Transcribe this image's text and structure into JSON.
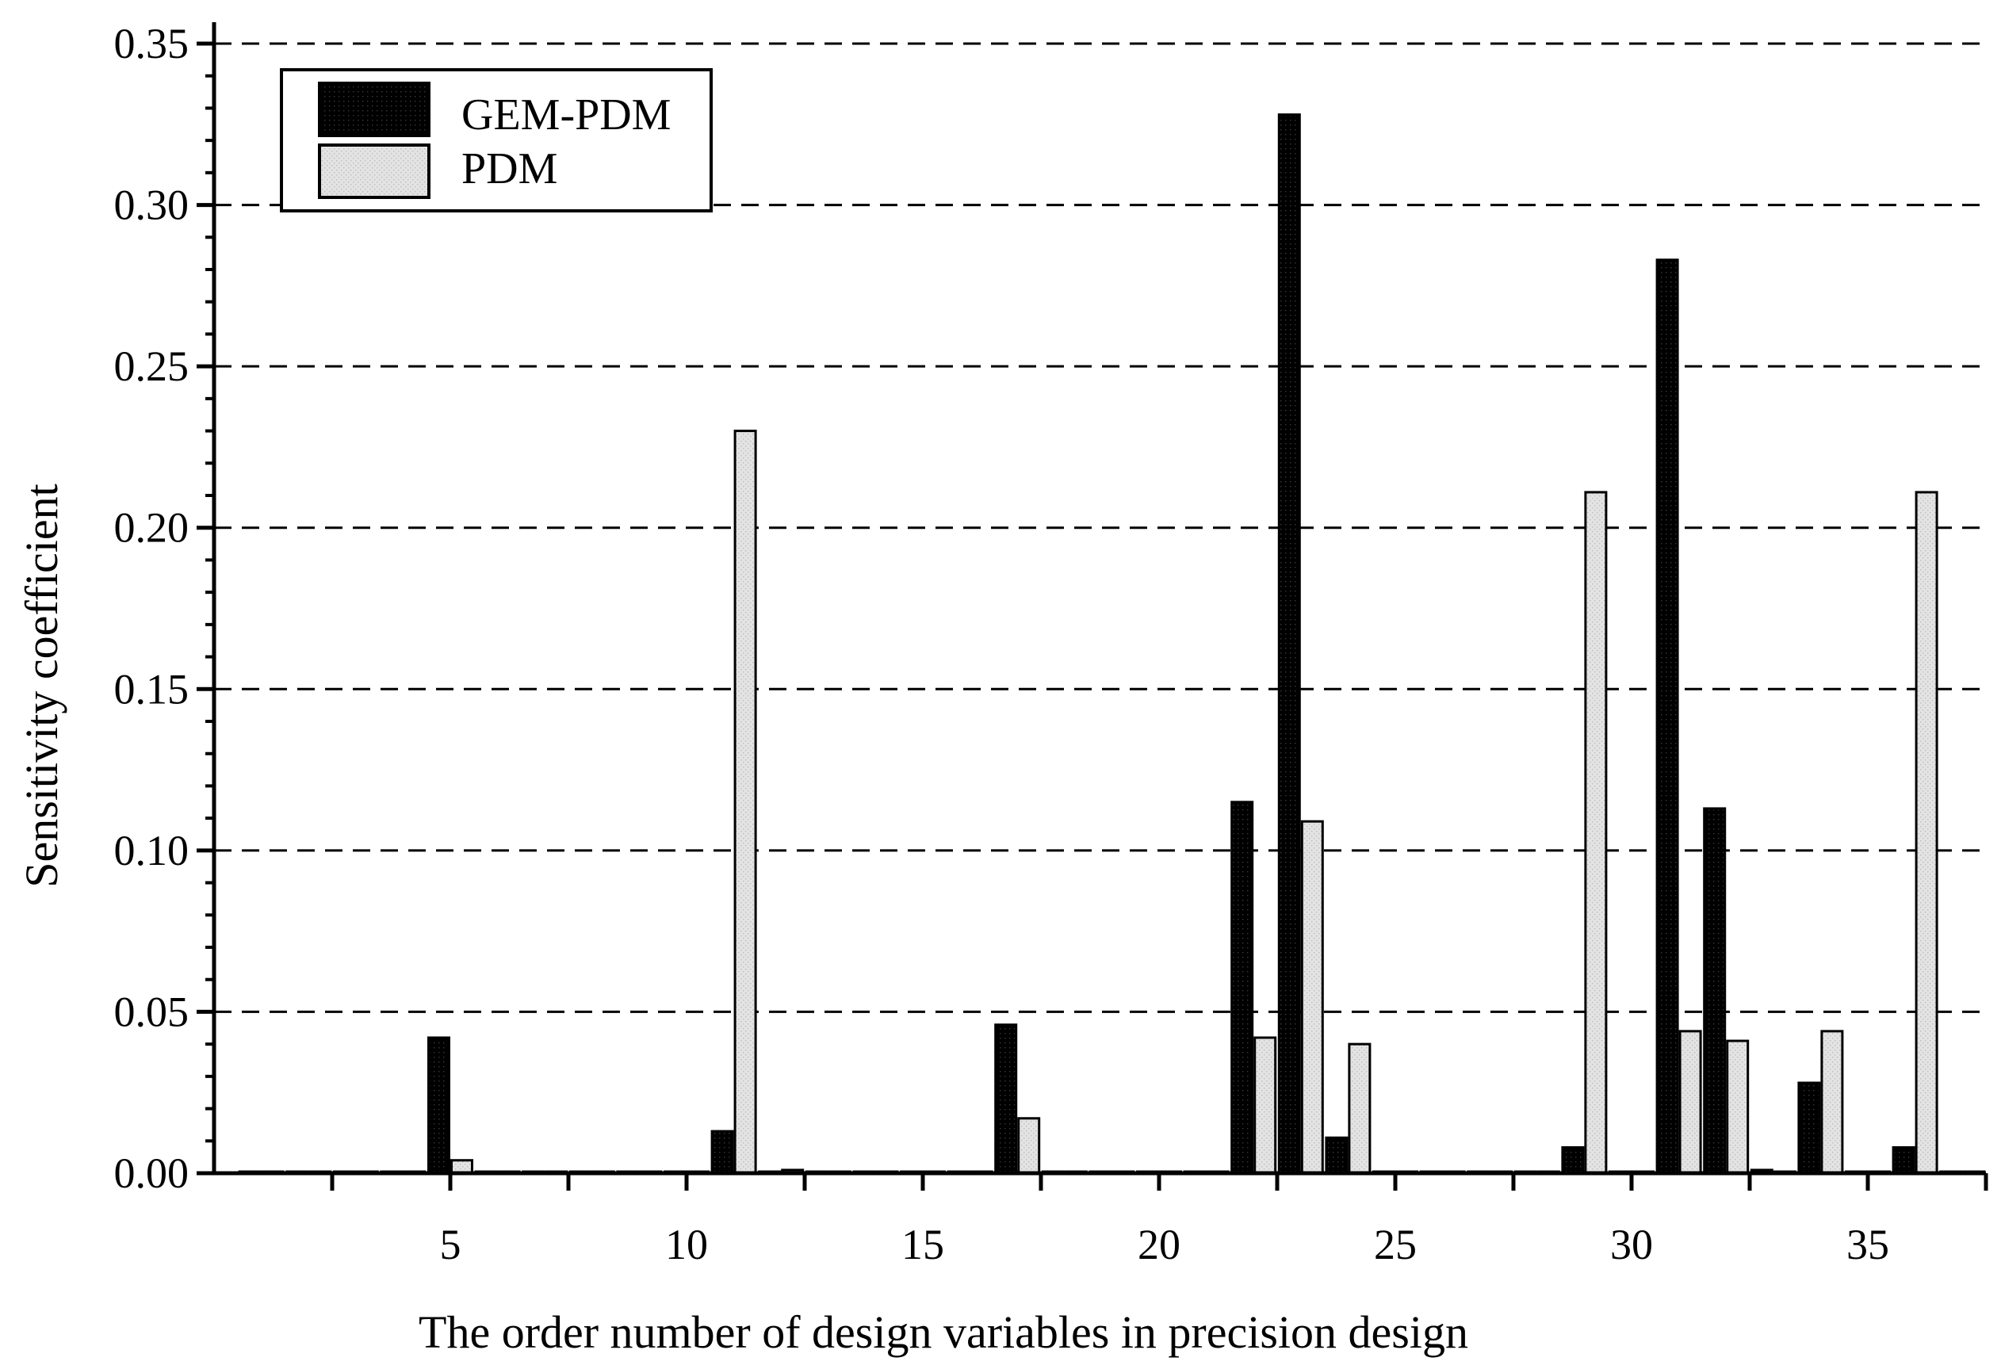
{
  "chart_data": {
    "type": "bar",
    "title": "",
    "xlabel": "The order number of design variables  in precision design",
    "ylabel": "Sensitivity coefficient",
    "xlim": [
      0,
      37.5
    ],
    "ylim": [
      0,
      0.35
    ],
    "grid": "horizontal-dashed",
    "legend_position": "top-left",
    "x_tick_labels": [
      "5",
      "10",
      "15",
      "20",
      "25",
      "30",
      "35"
    ],
    "x_tick_values": [
      5,
      10,
      15,
      20,
      25,
      30,
      35
    ],
    "y_tick_labels": [
      "0.00",
      "0.05",
      "0.10",
      "0.15",
      "0.20",
      "0.25",
      "0.30",
      "0.35"
    ],
    "y_tick_values": [
      0,
      0.05,
      0.1,
      0.15,
      0.2,
      0.25,
      0.3,
      0.35
    ],
    "categories": [
      1,
      2,
      3,
      4,
      5,
      6,
      7,
      8,
      9,
      10,
      11,
      12,
      13,
      14,
      15,
      16,
      17,
      18,
      19,
      20,
      21,
      22,
      23,
      24,
      25,
      26,
      27,
      28,
      29,
      30,
      31,
      32,
      33,
      34,
      35,
      36,
      37
    ],
    "series": [
      {
        "name": "GEM-PDM",
        "color": "#000000",
        "values": [
          0,
          0,
          0,
          0,
          0.042,
          0,
          0,
          0,
          0,
          0,
          0.013,
          0,
          0,
          0,
          0,
          0,
          0.046,
          0,
          0,
          0,
          0,
          0.115,
          0.328,
          0.011,
          0,
          0,
          0,
          0,
          0.008,
          0,
          0.283,
          0.113,
          0.001,
          0.028,
          0,
          0.008,
          0
        ]
      },
      {
        "name": "PDM",
        "color": "#dcdcdc",
        "values": [
          0,
          0,
          0,
          0,
          0.004,
          0,
          0,
          0,
          0,
          0,
          0.23,
          0.001,
          0,
          0,
          0,
          0,
          0.017,
          0,
          0,
          0,
          0,
          0.042,
          0.109,
          0.04,
          0,
          0,
          0,
          0,
          0.211,
          0,
          0.044,
          0.041,
          0,
          0.044,
          0,
          0.211,
          0
        ]
      }
    ]
  }
}
